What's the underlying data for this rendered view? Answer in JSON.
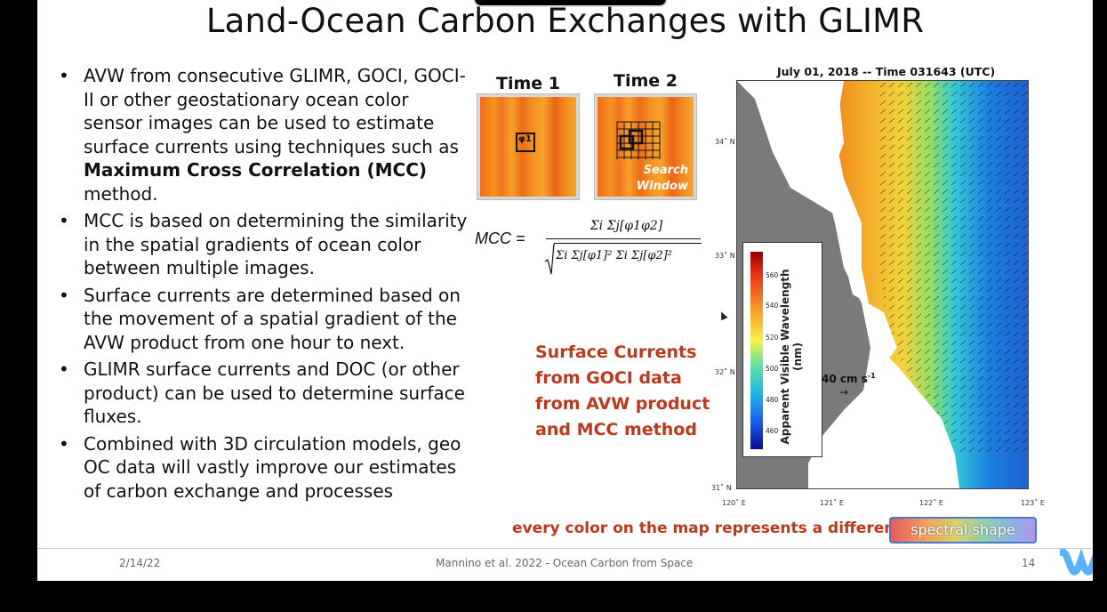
{
  "slide": {
    "title": "Land-Ocean Carbon Exchanges with GLIMR",
    "bullets": [
      {
        "pre": "AVW from consecutive GLIMR, GOCI, GOCI-II or other geostationary ocean color sensor images can be used to estimate surface currents using techniques such as ",
        "bold": "Maximum Cross Correlation (MCC)",
        "post": " method."
      },
      {
        "pre": "MCC is based on determining the similarity in the spatial gradients of ocean color between multiple images.",
        "bold": "",
        "post": ""
      },
      {
        "pre": "Surface currents are determined based on the movement of a spatial gradient of the AVW product from one hour to next.",
        "bold": "",
        "post": ""
      },
      {
        "pre": "GLIMR surface currents and DOC (or other product) can be used to determine surface fluxes.",
        "bold": "",
        "post": ""
      },
      {
        "pre": "Combined with 3D circulation models, geo OC data will vastly improve our estimates of carbon exchange and processes",
        "bold": "",
        "post": ""
      }
    ],
    "time1_label": "Time 1",
    "time2_label": "Time 2",
    "search_window_label_1": "Search",
    "search_window_label_2": "Window",
    "phi1_label": "φ1",
    "mcc_lhs": "MCC =",
    "mcc_numerator": "Σi Σj[φ1φ2]",
    "mcc_denominator": "Σi Σj[φ1]² Σi Σj[φ2]²",
    "red_text": [
      "Surface Currents",
      "from GOCI data",
      "from AVW product",
      "and MCC method"
    ],
    "map_title": "July 01, 2018 --  Time 031643 (UTC)",
    "lat_labels": [
      "34˚ N",
      "33˚ N",
      "32˚ N",
      "31˚ N"
    ],
    "lon_labels": [
      "120˚ E",
      "121˚ E",
      "122˚ E",
      "123˚ E"
    ],
    "legend_ticks": [
      "560",
      "540",
      "520",
      "500",
      "480",
      "460"
    ],
    "legend_label": "Apparent Visible Wavelength (nm)",
    "scale_label": "40 cm s",
    "scale_exp": "-1",
    "bottom_note": "every color on the map represents a different",
    "spectral_label": "spectral shape",
    "footer_date": "2/14/22",
    "footer_center": "Mannino et al. 2022 - Ocean Carbon from Space",
    "page_number": "14"
  },
  "colors": {
    "accent_red": "#b93a1c",
    "spectral_border": "#4b79c8"
  }
}
